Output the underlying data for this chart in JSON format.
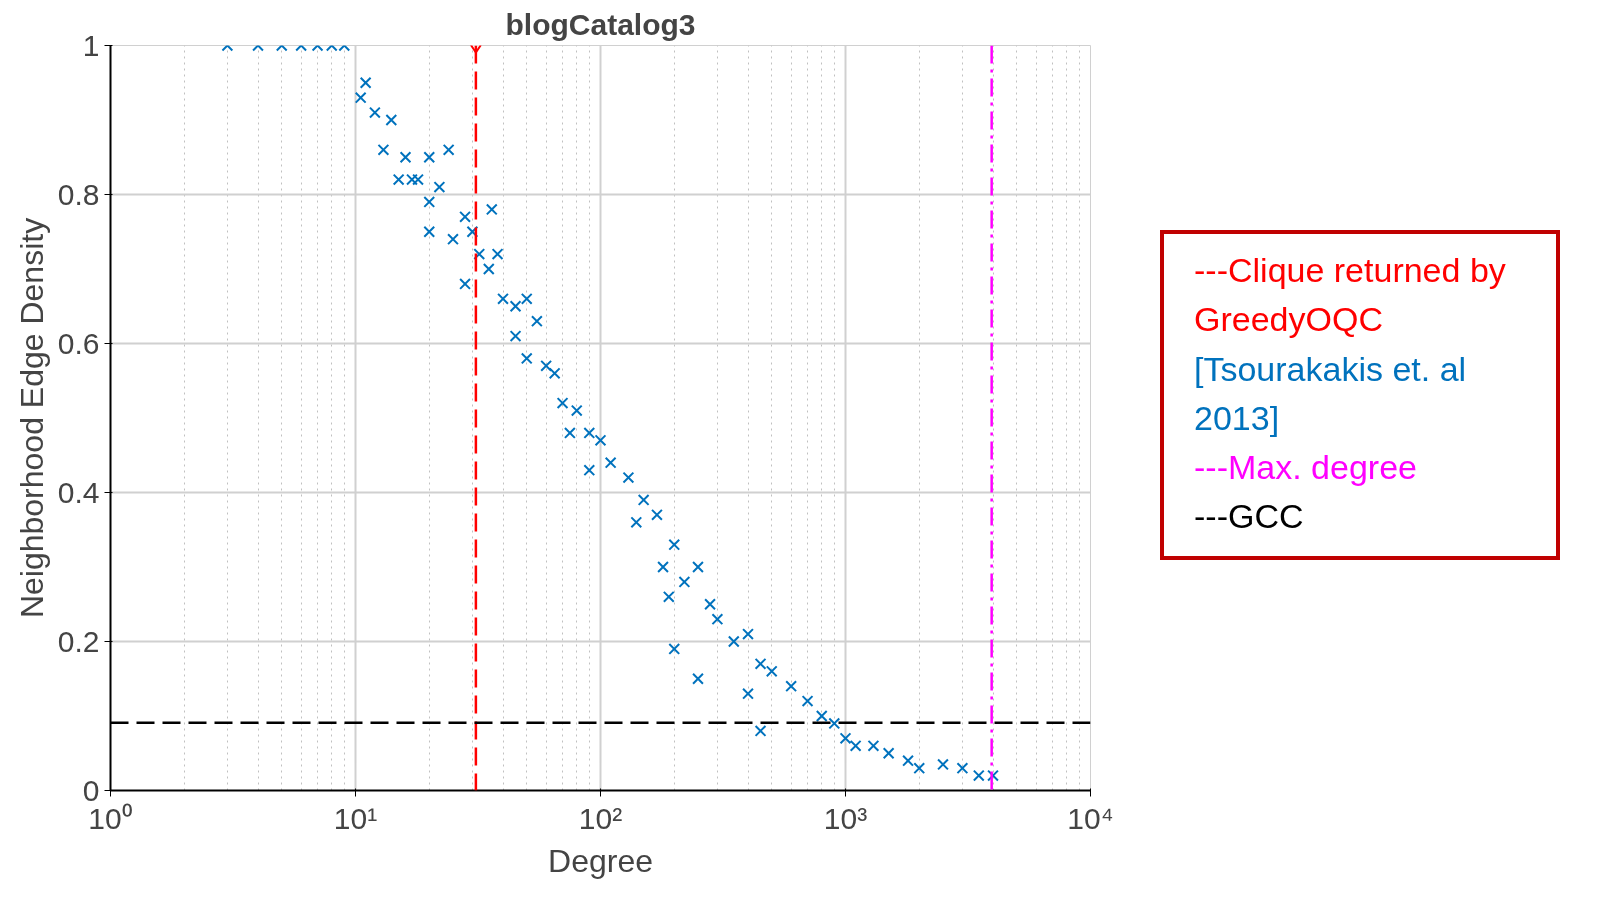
{
  "chart_data": {
    "type": "scatter",
    "title": "blogCatalog3",
    "xlabel": "Degree",
    "ylabel": "Neighborhood Edge Density",
    "log": "x",
    "xlim": [
      1,
      10000
    ],
    "ylim": [
      0,
      1
    ],
    "xticks": [
      {
        "value": 1,
        "label": "10⁰"
      },
      {
        "value": 10,
        "label": "10¹"
      },
      {
        "value": 100,
        "label": "10²"
      },
      {
        "value": 1000,
        "label": "10³"
      },
      {
        "value": 10000,
        "label": "10⁴"
      }
    ],
    "yticks": [
      0,
      0.2,
      0.4,
      0.6,
      0.8,
      1
    ],
    "grid": true,
    "marker": "cross",
    "series": [
      {
        "color": "#0072bd",
        "x": [
          3,
          4,
          5,
          6,
          7,
          8,
          9,
          10.5,
          11,
          12,
          14,
          13,
          15,
          16,
          17,
          18,
          20,
          20,
          22,
          24,
          20,
          25,
          28,
          30,
          28,
          32,
          36,
          38,
          35,
          40,
          45,
          50,
          45,
          55,
          50,
          60,
          65,
          70,
          80,
          75,
          90,
          100,
          110,
          90,
          130,
          150,
          140,
          170,
          200,
          180,
          220,
          250,
          190,
          280,
          300,
          200,
          250,
          350,
          400,
          450,
          500,
          400,
          600,
          700,
          450,
          800,
          900,
          1000,
          1100,
          1300,
          1500,
          1800,
          2000,
          2500,
          3000,
          3500,
          4000
        ],
        "values": [
          1,
          1,
          1,
          1,
          1,
          1,
          1,
          0.93,
          0.95,
          0.91,
          0.9,
          0.86,
          0.82,
          0.85,
          0.82,
          0.82,
          0.85,
          0.79,
          0.81,
          0.86,
          0.75,
          0.74,
          0.77,
          0.75,
          0.68,
          0.72,
          0.78,
          0.72,
          0.7,
          0.66,
          0.65,
          0.66,
          0.61,
          0.63,
          0.58,
          0.57,
          0.56,
          0.52,
          0.51,
          0.48,
          0.48,
          0.47,
          0.44,
          0.43,
          0.42,
          0.39,
          0.36,
          0.37,
          0.33,
          0.3,
          0.28,
          0.3,
          0.26,
          0.25,
          0.23,
          0.19,
          0.15,
          0.2,
          0.21,
          0.17,
          0.16,
          0.13,
          0.14,
          0.12,
          0.08,
          0.1,
          0.09,
          0.07,
          0.06,
          0.06,
          0.05,
          0.04,
          0.03,
          0.035,
          0.03,
          0.02,
          0.02
        ]
      },
      {
        "color": "#ff0000",
        "marker": "diamond",
        "x": [
          31
        ],
        "values": [
          1
        ]
      }
    ],
    "ref_lines": [
      {
        "axis": "x",
        "value": 31,
        "label": "---Clique returned by GreedyOQC",
        "color": "#ff0000",
        "line_style": "dashed"
      },
      {
        "axis": "x",
        "value": 3950,
        "label": "---Max. degree",
        "color": "#ff00ff",
        "line_style": "dashdot"
      },
      {
        "axis": "y",
        "value": 0.091,
        "label": "---GCC",
        "color": "#000000",
        "line_style": "dashed"
      }
    ],
    "annotations": [
      "[Tsourakakis et. al 2013]"
    ]
  }
}
